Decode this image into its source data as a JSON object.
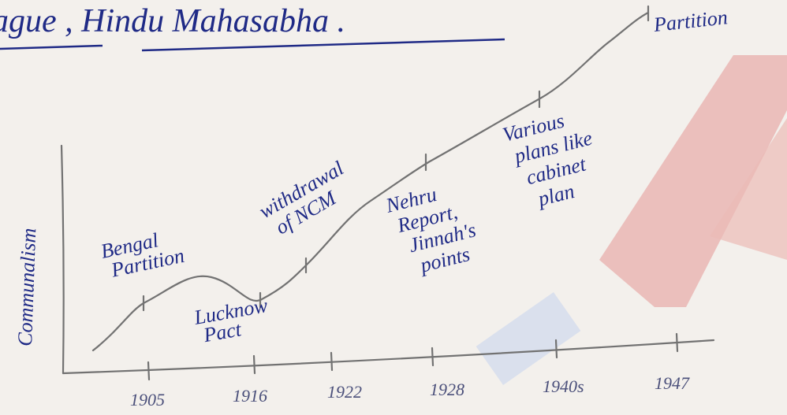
{
  "header": {
    "title": "ague , Hindu Mahasabha ."
  },
  "chart": {
    "y_label": "Communalism",
    "x_labels": [
      "1905",
      "1916",
      "1922",
      "1928",
      "1940s",
      "1947"
    ],
    "annotations": [
      {
        "lines": [
          "Bengal",
          "Partition"
        ]
      },
      {
        "lines": [
          "Lucknow",
          "Pact"
        ]
      },
      {
        "lines": [
          "withdrawal",
          "of NCM"
        ]
      },
      {
        "lines": [
          "Nehru",
          "Report,",
          "Jinnah's",
          "points"
        ]
      },
      {
        "lines": [
          "Various",
          "plans like",
          "cabinet",
          "plan"
        ]
      },
      {
        "lines": [
          "Partition"
        ]
      }
    ]
  }
}
